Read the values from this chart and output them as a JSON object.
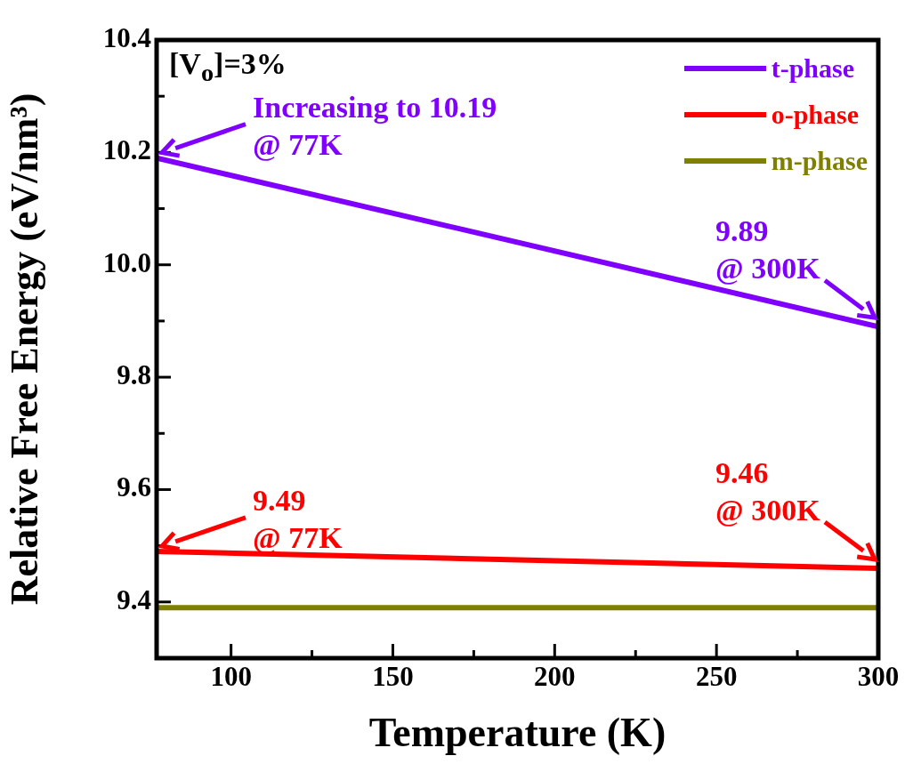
{
  "chart_data": {
    "type": "line",
    "xlabel": "Temperature (K)",
    "ylabel": "Relative Free Energy (eV/nm³)",
    "x": [
      77,
      300
    ],
    "series": [
      {
        "name": "t-phase",
        "color": "#8000ff",
        "values": [
          10.19,
          9.89
        ]
      },
      {
        "name": "o-phase",
        "color": "#ff0000",
        "values": [
          9.49,
          9.46
        ]
      },
      {
        "name": "m-phase",
        "color": "#808000",
        "values": [
          9.39,
          9.39
        ]
      }
    ],
    "xlim": [
      77,
      300
    ],
    "xticks": [
      100,
      {
        "value": 125,
        "label": null
      },
      150,
      {
        "value": 175,
        "label": null
      },
      200,
      {
        "value": 225,
        "label": null
      },
      250,
      {
        "value": 275,
        "label": null
      },
      300
    ],
    "ylim": [
      9.3,
      10.4
    ],
    "yticks": [
      9.4,
      {
        "value": 9.5,
        "label": null
      },
      9.6,
      {
        "value": 9.7,
        "label": null
      },
      9.8,
      {
        "value": 9.9,
        "label": null
      },
      {
        "value": 10.0,
        "label": "10.0"
      },
      {
        "value": 10.1,
        "label": null
      },
      10.2,
      {
        "value": 10.3,
        "label": null
      },
      10.4
    ],
    "legend": "top right",
    "marker": "none",
    "line_style": "solid",
    "grid": false,
    "annotations": [
      "[V$_{o}$]=3%",
      "Increasing to 10.19\n@ 77K",
      "9.89\n@ 300K",
      "9.49\n@ 77K",
      "9.46\n@ 300K"
    ]
  }
}
